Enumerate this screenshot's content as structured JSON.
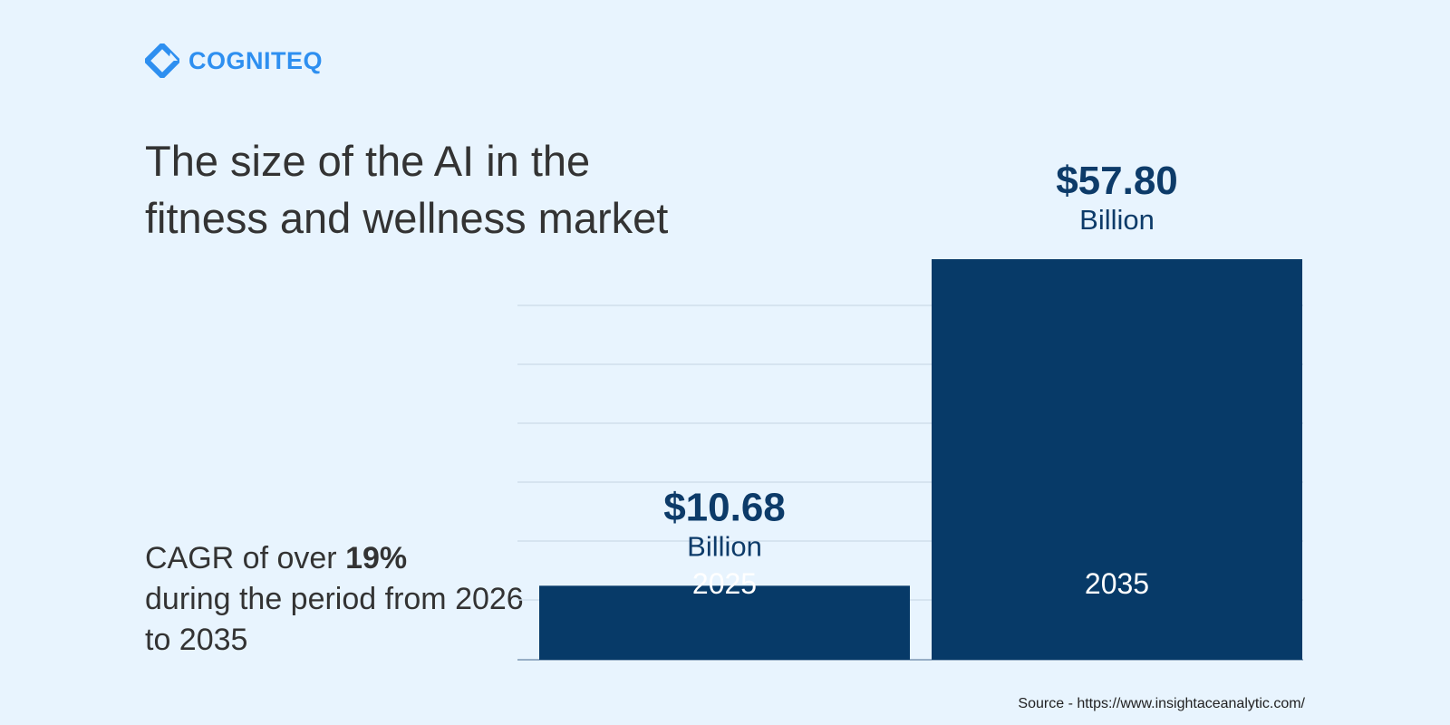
{
  "brand": {
    "name": "COGNITEQ",
    "color": "#2e8ff0",
    "icon": "cogniteq-logo-icon"
  },
  "title": "The size of the AI in the fitness and wellness market",
  "cagr": {
    "prefix": "CAGR of over ",
    "highlight": "19%",
    "suffix": "during the period from 2026 to 2035"
  },
  "chart_data": {
    "type": "bar",
    "categories": [
      "2025",
      "2035"
    ],
    "values": [
      10.68,
      57.8
    ],
    "value_labels": [
      "$10.68",
      "$57.80"
    ],
    "unit": "Billion",
    "ylim": [
      0,
      60
    ],
    "grid": true,
    "bar_color": "#073a68",
    "label_color": "#0d3b69"
  },
  "source": "Source - https://www.insightaceanalytic.com/"
}
